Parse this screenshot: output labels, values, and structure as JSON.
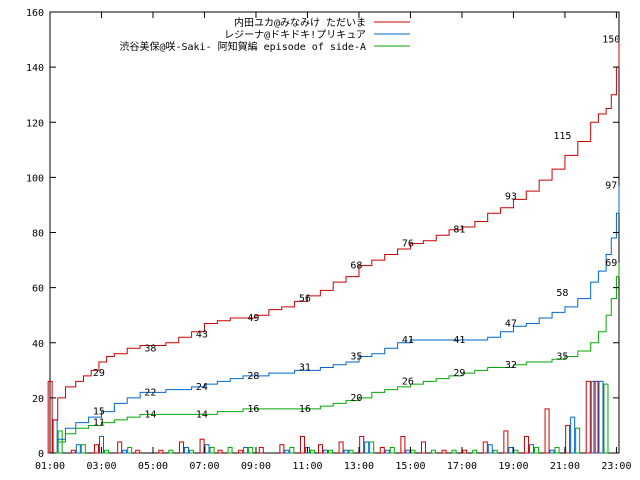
{
  "chart_data": {
    "type": "line",
    "title": "",
    "xlabel": "",
    "ylabel": "",
    "xlim": [
      1,
      23.1
    ],
    "ylim": [
      0,
      160
    ],
    "x_ticks": [
      "01:00",
      "03:00",
      "05:00",
      "07:00",
      "09:00",
      "11:00",
      "13:00",
      "15:00",
      "17:00",
      "19:00",
      "21:00",
      "23:00"
    ],
    "y_ticks": [
      "0",
      "20",
      "40",
      "60",
      "80",
      "100",
      "120",
      "140",
      "160"
    ],
    "grid": false,
    "legend_position": "top-right",
    "series": [
      {
        "name": "内田ユカ@みなみけ ただいま",
        "color": "#cc0000",
        "x": [
          1.0,
          1.1,
          1.3,
          1.6,
          2.0,
          2.3,
          2.6,
          2.9,
          3.2,
          3.5,
          4.0,
          4.5,
          5.0,
          5.5,
          6.0,
          6.5,
          7.0,
          7.5,
          8.0,
          8.5,
          9.0,
          9.5,
          10.0,
          10.5,
          11.0,
          11.5,
          12.0,
          12.5,
          13.0,
          13.5,
          14.0,
          14.5,
          15.0,
          15.5,
          16.0,
          16.5,
          17.0,
          17.5,
          18.0,
          18.5,
          19.0,
          19.5,
          20.0,
          20.5,
          21.0,
          21.5,
          22.0,
          22.3,
          22.6,
          22.8,
          23.0,
          23.1
        ],
        "y": [
          0,
          12,
          20,
          24,
          26,
          28,
          30,
          33,
          35,
          36,
          38,
          39,
          39,
          40,
          42,
          44,
          47,
          48,
          49,
          49,
          50,
          52,
          53,
          55,
          57,
          59,
          62,
          64,
          68,
          70,
          72,
          74,
          76,
          77,
          79,
          81,
          82,
          84,
          87,
          89,
          92,
          95,
          99,
          103,
          108,
          113,
          120,
          123,
          125,
          130,
          140,
          150
        ]
      },
      {
        "name": "レジーナ@ドキドキ!プリキュア",
        "color": "#0066cc",
        "x": [
          1.0,
          1.3,
          1.6,
          2.0,
          2.5,
          3.0,
          3.5,
          4.0,
          4.5,
          5.0,
          5.5,
          6.0,
          6.5,
          7.0,
          7.5,
          8.0,
          8.5,
          9.0,
          9.5,
          10.0,
          10.5,
          11.0,
          11.5,
          12.0,
          12.5,
          13.0,
          13.5,
          14.0,
          14.5,
          15.0,
          15.5,
          16.0,
          16.5,
          17.0,
          17.5,
          18.0,
          18.5,
          19.0,
          19.5,
          20.0,
          20.5,
          21.0,
          21.5,
          22.0,
          22.3,
          22.6,
          22.8,
          23.0,
          23.1
        ],
        "y": [
          0,
          5,
          9,
          11,
          13,
          15,
          18,
          20,
          22,
          22,
          23,
          23,
          24,
          25,
          26,
          27,
          28,
          28,
          29,
          29,
          30,
          30,
          31,
          32,
          33,
          35,
          36,
          38,
          40,
          41,
          41,
          41,
          41,
          41,
          41,
          42,
          44,
          46,
          47,
          49,
          51,
          53,
          56,
          62,
          66,
          72,
          78,
          87,
          97
        ]
      },
      {
        "name": "渋谷美保@咲-Saki- 阿知賀編 episode of side-A",
        "color": "#00aa00",
        "x": [
          1.0,
          1.3,
          1.6,
          2.0,
          2.5,
          3.0,
          3.5,
          4.0,
          4.5,
          5.0,
          5.5,
          6.0,
          6.5,
          7.0,
          7.5,
          8.0,
          8.5,
          9.0,
          9.5,
          10.0,
          10.5,
          11.0,
          11.5,
          12.0,
          12.5,
          13.0,
          13.5,
          14.0,
          14.5,
          15.0,
          15.5,
          16.0,
          16.5,
          17.0,
          17.5,
          18.0,
          18.5,
          19.0,
          19.5,
          20.0,
          20.5,
          21.0,
          21.5,
          22.0,
          22.3,
          22.6,
          22.8,
          23.0,
          23.1
        ],
        "y": [
          0,
          4,
          7,
          9,
          10,
          11,
          12,
          13,
          14,
          14,
          14,
          14,
          14,
          14,
          15,
          15,
          16,
          16,
          16,
          16,
          16,
          16,
          17,
          18,
          19,
          20,
          22,
          23,
          24,
          25,
          26,
          27,
          28,
          29,
          30,
          31,
          31,
          32,
          33,
          33,
          34,
          35,
          37,
          40,
          44,
          50,
          56,
          64,
          69
        ]
      }
    ],
    "point_labels": [
      {
        "series": 0,
        "x": 2.9,
        "y": 29,
        "text": "29"
      },
      {
        "series": 0,
        "x": 4.9,
        "y": 38,
        "text": "38"
      },
      {
        "series": 0,
        "x": 6.9,
        "y": 43,
        "text": "43"
      },
      {
        "series": 0,
        "x": 8.9,
        "y": 49,
        "text": "49"
      },
      {
        "series": 0,
        "x": 10.9,
        "y": 56,
        "text": "56"
      },
      {
        "series": 0,
        "x": 12.9,
        "y": 68,
        "text": "68"
      },
      {
        "series": 0,
        "x": 14.9,
        "y": 76,
        "text": "76"
      },
      {
        "series": 0,
        "x": 16.9,
        "y": 81,
        "text": "81"
      },
      {
        "series": 0,
        "x": 18.9,
        "y": 93,
        "text": "93"
      },
      {
        "series": 0,
        "x": 20.9,
        "y": 115,
        "text": "115"
      },
      {
        "series": 0,
        "x": 22.8,
        "y": 150,
        "text": "150"
      },
      {
        "series": 1,
        "x": 2.9,
        "y": 15,
        "text": "15"
      },
      {
        "series": 1,
        "x": 4.9,
        "y": 22,
        "text": "22"
      },
      {
        "series": 1,
        "x": 6.9,
        "y": 24,
        "text": "24"
      },
      {
        "series": 1,
        "x": 8.9,
        "y": 28,
        "text": "28"
      },
      {
        "series": 1,
        "x": 10.9,
        "y": 31,
        "text": "31"
      },
      {
        "series": 1,
        "x": 12.9,
        "y": 35,
        "text": "35"
      },
      {
        "series": 1,
        "x": 14.9,
        "y": 41,
        "text": "41"
      },
      {
        "series": 1,
        "x": 16.9,
        "y": 41,
        "text": "41"
      },
      {
        "series": 1,
        "x": 18.9,
        "y": 47,
        "text": "47"
      },
      {
        "series": 1,
        "x": 20.9,
        "y": 58,
        "text": "58"
      },
      {
        "series": 1,
        "x": 22.8,
        "y": 97,
        "text": "97"
      },
      {
        "series": 2,
        "x": 2.9,
        "y": 11,
        "text": "11"
      },
      {
        "series": 2,
        "x": 4.9,
        "y": 14,
        "text": "14"
      },
      {
        "series": 2,
        "x": 6.9,
        "y": 14,
        "text": "14"
      },
      {
        "series": 2,
        "x": 8.9,
        "y": 16,
        "text": "16"
      },
      {
        "series": 2,
        "x": 10.9,
        "y": 16,
        "text": "16"
      },
      {
        "series": 2,
        "x": 12.9,
        "y": 20,
        "text": "20"
      },
      {
        "series": 2,
        "x": 14.9,
        "y": 26,
        "text": "26"
      },
      {
        "series": 2,
        "x": 16.9,
        "y": 29,
        "text": "29"
      },
      {
        "series": 2,
        "x": 18.9,
        "y": 32,
        "text": "32"
      },
      {
        "series": 2,
        "x": 20.9,
        "y": 35,
        "text": "35"
      },
      {
        "series": 2,
        "x": 22.8,
        "y": 69,
        "text": "69"
      }
    ],
    "bars": {
      "description_series_order": [
        0,
        1,
        2
      ],
      "x": [
        1.2,
        2.1,
        3.0,
        3.9,
        4.6,
        5.5,
        6.3,
        7.1,
        7.8,
        8.6,
        9.4,
        10.2,
        11.0,
        11.7,
        12.5,
        13.3,
        14.1,
        14.9,
        15.7,
        16.5,
        17.3,
        18.1,
        18.9,
        19.7,
        20.5,
        21.3,
        22.1,
        22.4
      ],
      "values": [
        [
          26,
          1,
          3,
          4,
          1,
          1,
          4,
          5,
          1,
          1,
          2,
          3,
          6,
          3,
          4,
          6,
          2,
          6,
          4,
          1,
          1,
          4,
          8,
          6,
          16,
          10,
          26,
          26
        ],
        [
          12,
          3,
          6,
          1,
          0,
          0,
          2,
          3,
          0,
          2,
          0,
          1,
          2,
          1,
          1,
          4,
          1,
          1,
          0,
          0,
          0,
          3,
          2,
          3,
          1,
          13,
          26,
          26
        ],
        [
          8,
          3,
          1,
          2,
          0,
          1,
          1,
          2,
          2,
          2,
          0,
          2,
          1,
          1,
          1,
          4,
          2,
          1,
          1,
          1,
          1,
          1,
          1,
          2,
          2,
          9,
          0,
          25
        ]
      ]
    }
  }
}
